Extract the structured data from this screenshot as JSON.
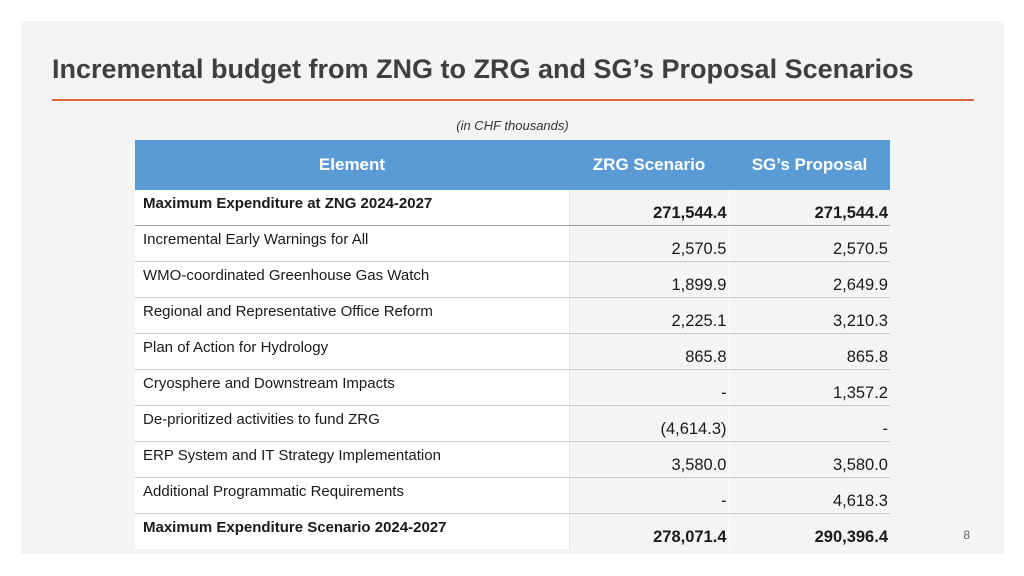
{
  "slide": {
    "title": "Incremental budget from ZNG to ZRG and SG’s Proposal Scenarios",
    "units_note": "(in CHF thousands)",
    "page_number": "8",
    "accent_color": "#e0643a",
    "header_color": "#5b9bd5"
  },
  "table": {
    "headers": [
      "Element",
      "ZRG Scenario",
      "SG’s Proposal"
    ],
    "rows": [
      {
        "element": "Maximum Expenditure at ZNG 2024-2027",
        "zrg": "271,544.4",
        "sg": "271,544.4"
      },
      {
        "element": "Incremental Early Warnings for All",
        "zrg": "2,570.5",
        "sg": "2,570.5"
      },
      {
        "element": "WMO-coordinated Greenhouse Gas Watch",
        "zrg": "1,899.9",
        "sg": "2,649.9"
      },
      {
        "element": "Regional and Representative Office Reform",
        "zrg": "2,225.1",
        "sg": "3,210.3"
      },
      {
        "element": "Plan of Action for Hydrology",
        "zrg": "865.8",
        "sg": "865.8"
      },
      {
        "element": "Cryosphere and Downstream Impacts",
        "zrg": "-",
        "sg": "1,357.2"
      },
      {
        "element": "De-prioritized activities to fund ZRG",
        "zrg": "(4,614.3)",
        "sg": "-"
      },
      {
        "element": "ERP System and IT Strategy Implementation",
        "zrg": "3,580.0",
        "sg": "3,580.0"
      },
      {
        "element": "Additional Programmatic Requirements",
        "zrg": "-",
        "sg": "4,618.3"
      },
      {
        "element": "Maximum Expenditure Scenario 2024-2027",
        "zrg": "278,071.4",
        "sg": "290,396.4"
      }
    ]
  }
}
